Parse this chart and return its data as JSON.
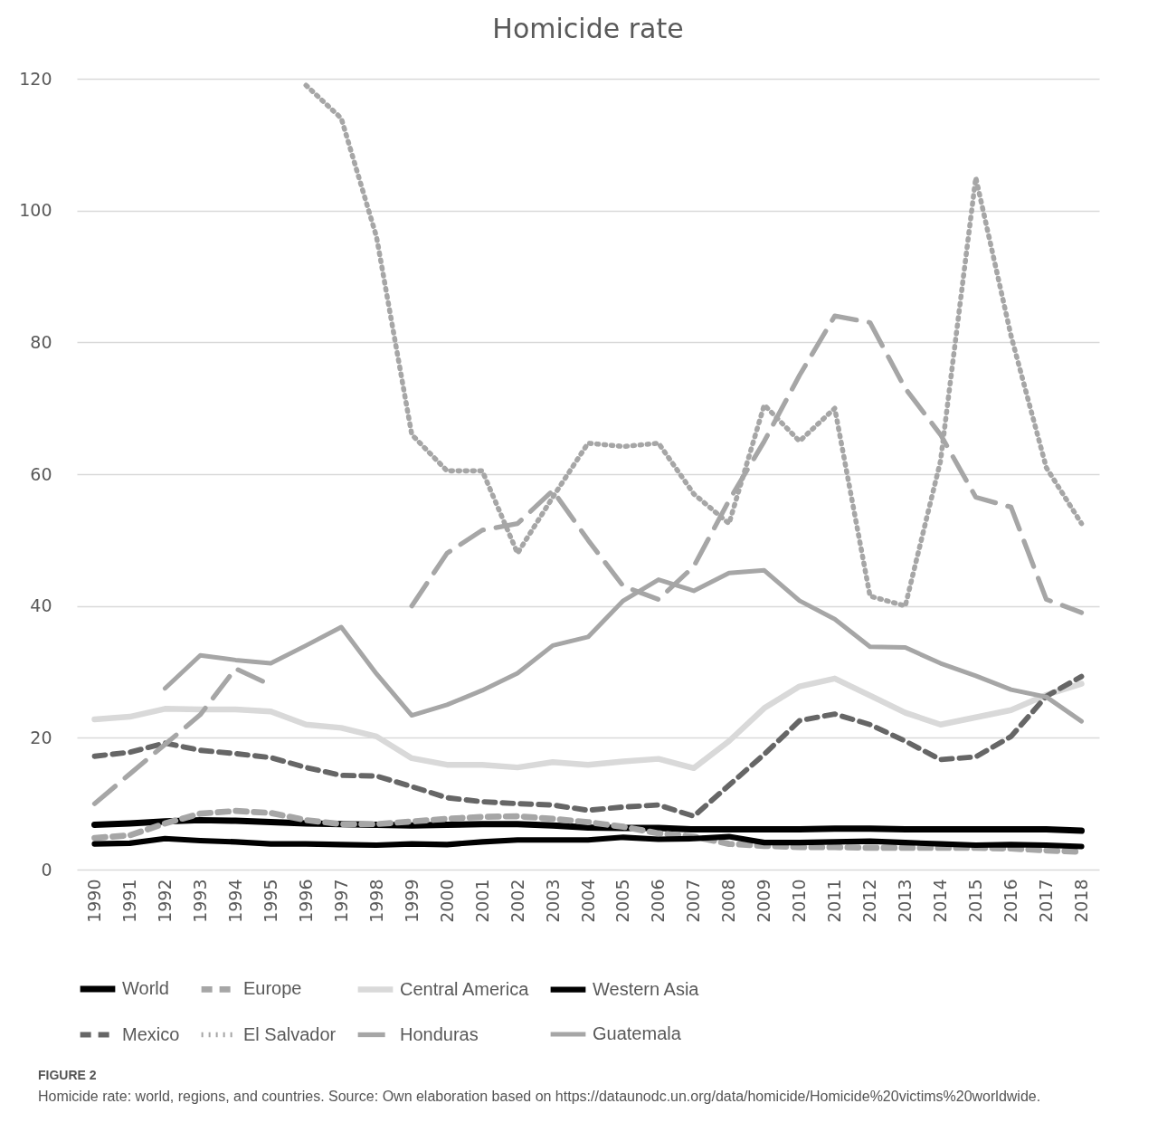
{
  "chart_data": {
    "type": "line",
    "title": "Homicide rate",
    "categories": [
      "1990",
      "1991",
      "1992",
      "1993",
      "1994",
      "1995",
      "1996",
      "1997",
      "1998",
      "1999",
      "2000",
      "2001",
      "2002",
      "2003",
      "2004",
      "2005",
      "2006",
      "2007",
      "2008",
      "2009",
      "2010",
      "2011",
      "2012",
      "2013",
      "2014",
      "2015",
      "2016",
      "2017",
      "2018"
    ],
    "ylim": [
      0,
      120
    ],
    "yticks": [
      0,
      20,
      40,
      60,
      80,
      100,
      120
    ],
    "grid": "y",
    "legend": "bottom",
    "series": [
      {
        "name": "World",
        "color": "#000000",
        "line_style": "solid",
        "values": [
          6.8,
          7,
          7.3,
          7.5,
          7.4,
          7.2,
          7,
          6.9,
          6.8,
          6.7,
          6.8,
          6.9,
          6.9,
          6.7,
          6.4,
          6.3,
          6.3,
          6.1,
          6.1,
          6.1,
          6.1,
          6.2,
          6.2,
          6.1,
          6.1,
          6.1,
          6.1,
          6.1,
          5.9
        ]
      },
      {
        "name": "Europe",
        "color": "#a6a6a6",
        "line_style": "dashed",
        "values": [
          4.8,
          5.2,
          7,
          8.5,
          8.9,
          8.6,
          7.5,
          6.9,
          6.9,
          7.3,
          7.7,
          8,
          8.1,
          7.7,
          7.2,
          6.5,
          5.5,
          5,
          3.9,
          3.6,
          3.4,
          3.4,
          3.3,
          3.3,
          3.3,
          3.3,
          3.2,
          2.9,
          2.7
        ]
      },
      {
        "name": "Central America",
        "color": "#d9d9d9",
        "line_style": "solid",
        "values": [
          22.8,
          23.2,
          24.4,
          24.3,
          24.3,
          24,
          22,
          21.5,
          20.2,
          16.9,
          15.9,
          15.9,
          15.5,
          16.3,
          15.9,
          16.4,
          16.8,
          15.4,
          19.5,
          24.5,
          27.8,
          29,
          26.4,
          23.8,
          22,
          23.1,
          24.2,
          26.5,
          28.2
        ]
      },
      {
        "name": "Western Asia",
        "color": "#000000",
        "line_style": "solid",
        "values": [
          3.9,
          4,
          4.7,
          4.4,
          4.2,
          3.9,
          3.9,
          3.8,
          3.7,
          3.9,
          3.8,
          4.2,
          4.5,
          4.5,
          4.5,
          4.9,
          4.6,
          4.7,
          5,
          4.1,
          4.1,
          4.2,
          4.3,
          4.1,
          3.9,
          3.7,
          3.8,
          3.7,
          3.5
        ]
      },
      {
        "name": "Mexico",
        "color": "#666666",
        "line_style": "dashed",
        "values": [
          17.2,
          17.8,
          19.2,
          18.1,
          17.6,
          17,
          15.5,
          14.3,
          14.2,
          12.6,
          10.9,
          10.3,
          10,
          9.8,
          9,
          9.5,
          9.8,
          8.1,
          12.8,
          17.5,
          22.6,
          23.6,
          22,
          19.5,
          16.7,
          17.1,
          20.2,
          26.3,
          29.3
        ]
      },
      {
        "name": "El Salvador",
        "color": "#a6a6a6",
        "line_style": "dotted",
        "values": [
          null,
          null,
          null,
          null,
          null,
          null,
          119,
          114,
          96,
          66,
          60.5,
          60.5,
          48,
          56.5,
          64.7,
          64.2,
          64.7,
          57,
          52.5,
          70.5,
          65,
          70,
          41.5,
          40,
          62,
          105,
          81,
          61,
          52.5
        ]
      },
      {
        "name": "Honduras",
        "color": "#a6a6a6",
        "line_style": "dashed",
        "values": [
          10,
          14.5,
          19,
          23.5,
          30.5,
          28,
          null,
          null,
          null,
          40,
          48,
          51.5,
          52.5,
          57.5,
          50,
          43,
          41,
          46,
          56,
          65,
          75,
          84,
          83,
          73,
          66,
          56.5,
          55,
          41,
          39
        ]
      },
      {
        "name": "Guatemala",
        "color": "#a6a6a6",
        "line_style": "solid",
        "values": [
          null,
          null,
          27.5,
          32.5,
          31.8,
          31.3,
          34,
          36.8,
          29.7,
          23.4,
          25,
          27.2,
          29.8,
          34,
          35.3,
          40.8,
          44,
          42.3,
          45,
          45.4,
          40.8,
          38,
          33.8,
          33.7,
          31.3,
          29.4,
          27.3,
          26.2,
          22.5
        ]
      }
    ],
    "annotations": [
      "FIGURE 2",
      "Homicide rate: world, regions, and countries. Source: Own elaboration based on https://dataunodc.un.org/data/homicide/Homicide%20victims%20worldwide."
    ]
  }
}
